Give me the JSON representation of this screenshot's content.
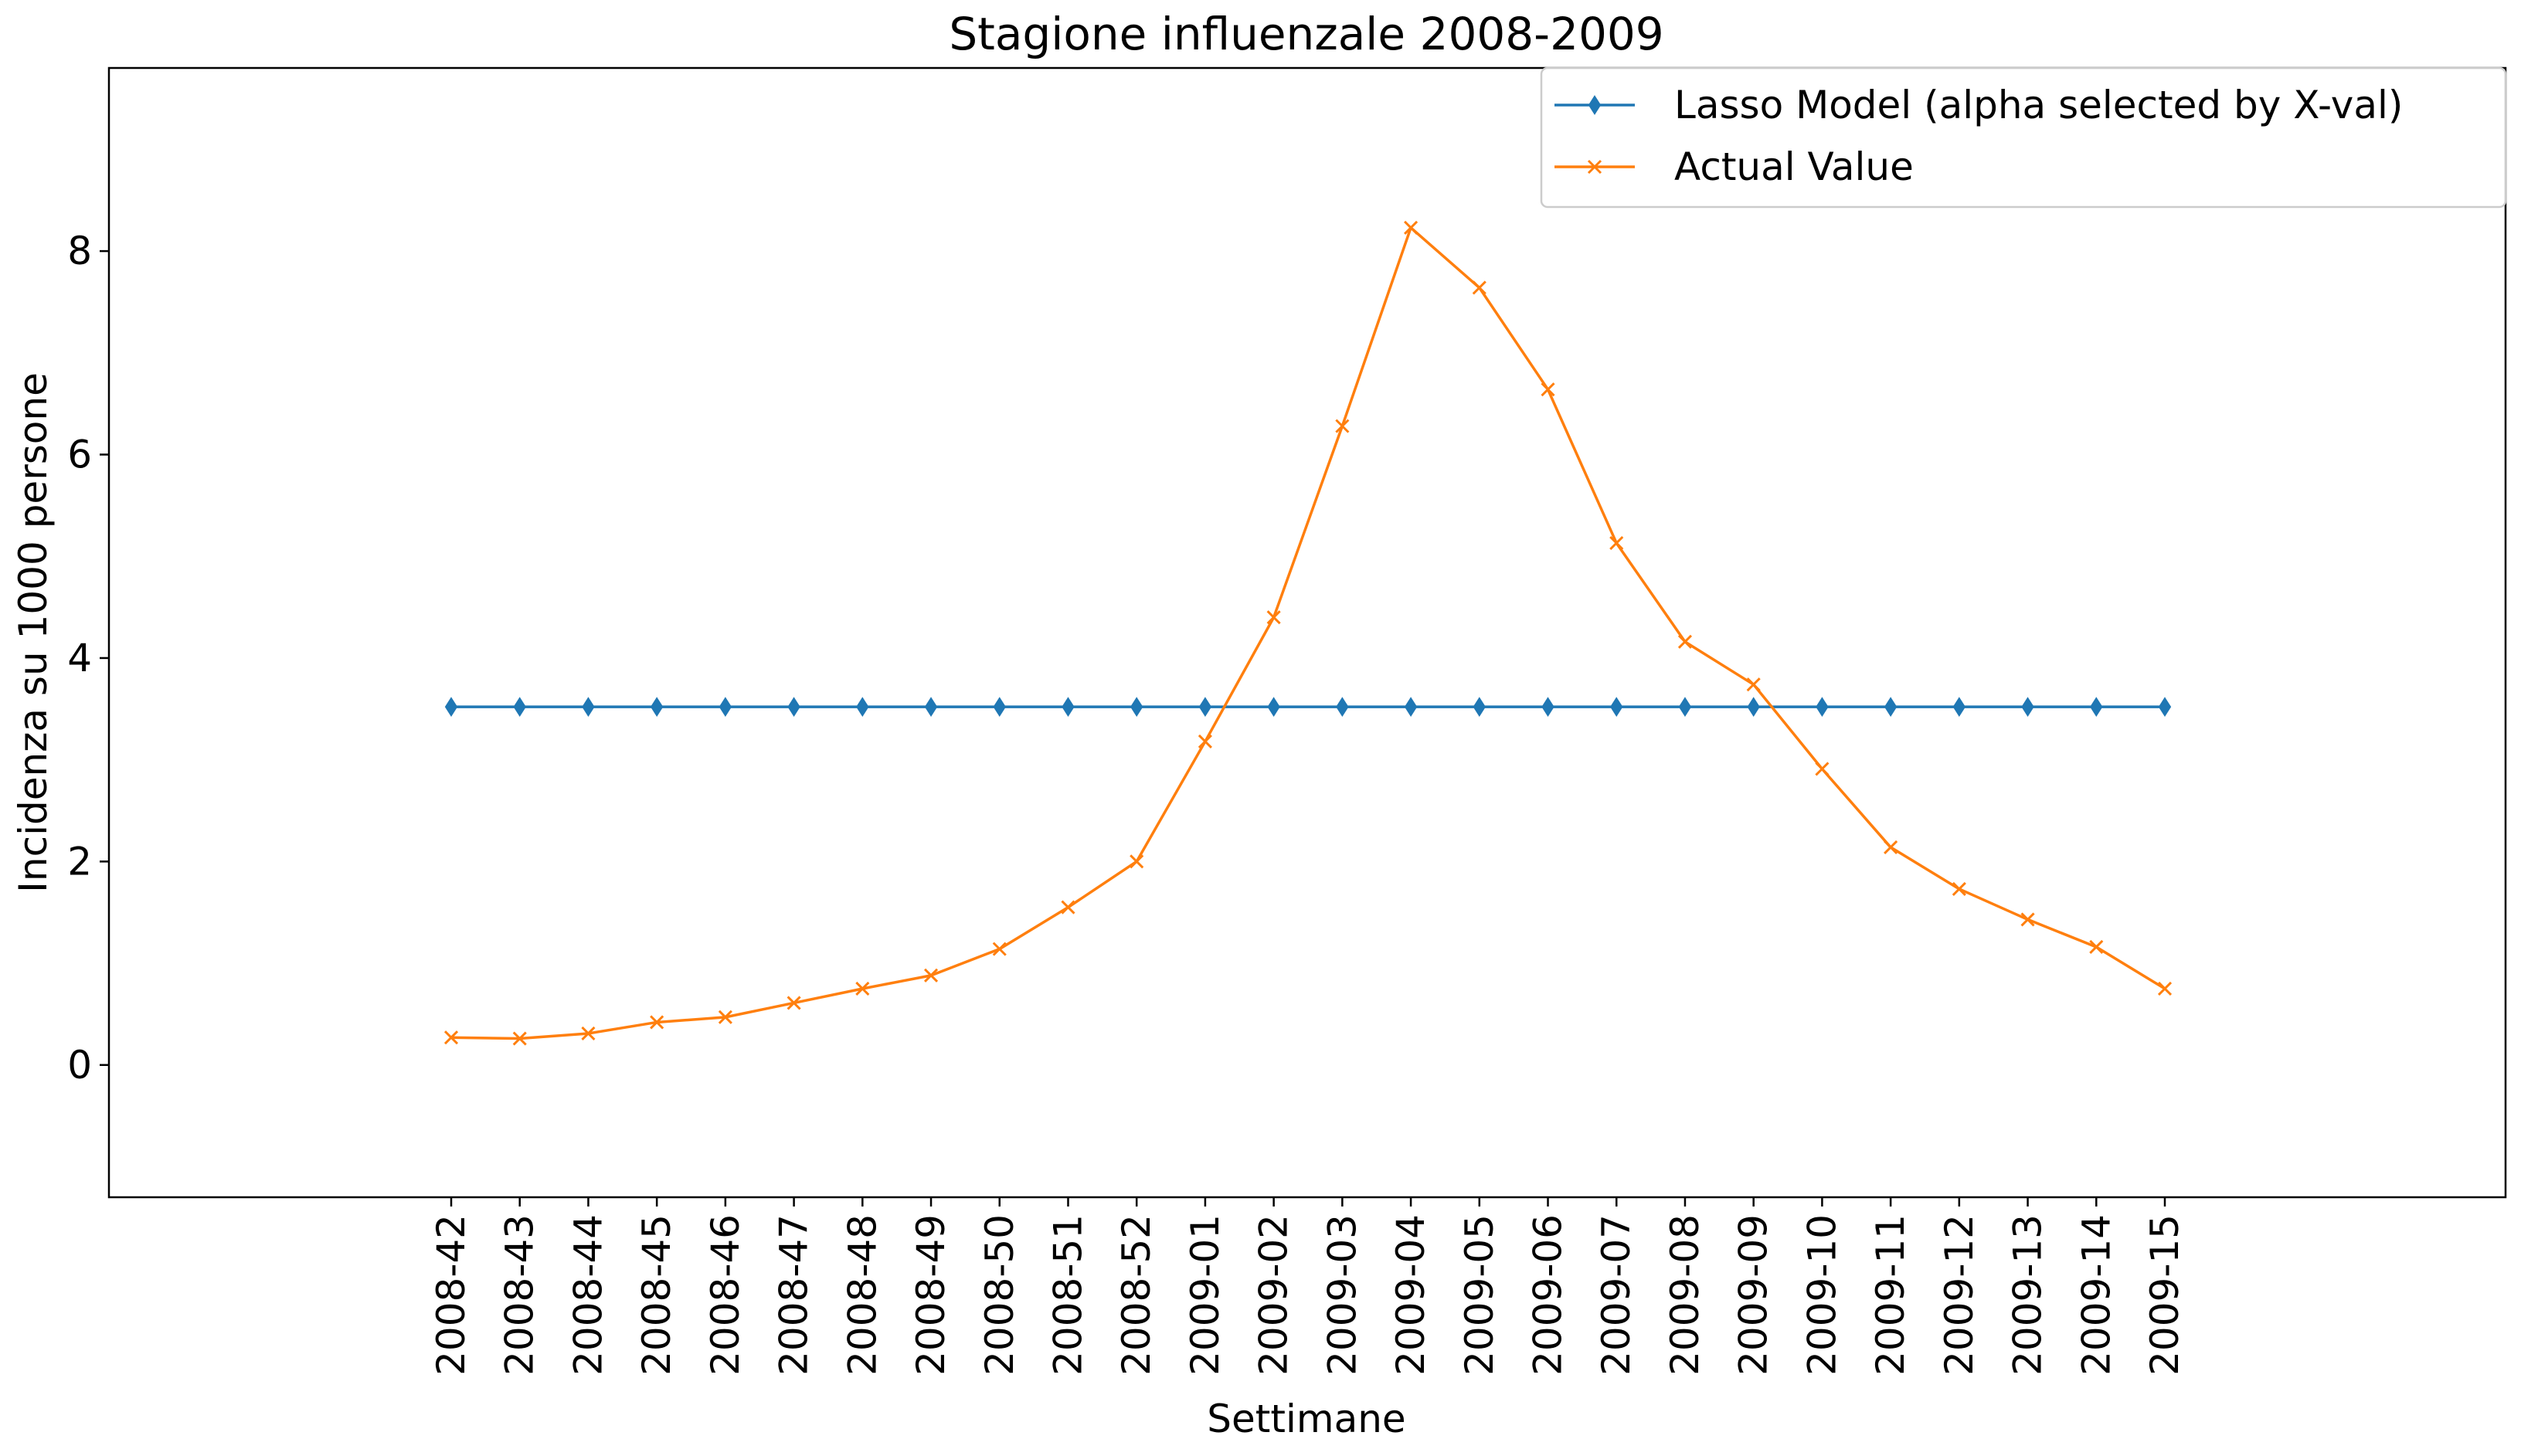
{
  "chart_data": {
    "type": "line",
    "title": "Stagione influenzale 2008-2009",
    "xlabel": "Settimane",
    "ylabel": "Incidenza su 1000 persone",
    "x": [
      "2008-42",
      "2008-43",
      "2008-44",
      "2008-45",
      "2008-46",
      "2008-47",
      "2008-48",
      "2008-49",
      "2008-50",
      "2008-51",
      "2008-52",
      "2009-01",
      "2009-02",
      "2009-03",
      "2009-04",
      "2009-05",
      "2009-06",
      "2009-07",
      "2009-08",
      "2009-09",
      "2009-10",
      "2009-11",
      "2009-12",
      "2009-13",
      "2009-14",
      "2009-15"
    ],
    "series": [
      {
        "name": "Lasso Model (alpha selected by X-val)",
        "color": "#1f77b4",
        "marker": "thin_diamond",
        "values": [
          3.52,
          3.52,
          3.52,
          3.52,
          3.52,
          3.52,
          3.52,
          3.52,
          3.52,
          3.52,
          3.52,
          3.52,
          3.52,
          3.52,
          3.52,
          3.52,
          3.52,
          3.52,
          3.52,
          3.52,
          3.52,
          3.52,
          3.52,
          3.52,
          3.52,
          3.52
        ]
      },
      {
        "name": "Actual Value",
        "color": "#ff7f0e",
        "marker": "x",
        "values": [
          0.27,
          0.26,
          0.31,
          0.42,
          0.47,
          0.61,
          0.75,
          0.88,
          1.14,
          1.55,
          2.0,
          3.18,
          4.4,
          6.28,
          8.23,
          7.64,
          6.64,
          5.13,
          4.16,
          3.74,
          2.91,
          2.14,
          1.73,
          1.43,
          1.16,
          0.75
        ]
      }
    ],
    "yticks": [
      0,
      2,
      4,
      6,
      8
    ],
    "ylim": [
      -1.3,
      9.8
    ],
    "grid": false,
    "legend": "top-right"
  }
}
